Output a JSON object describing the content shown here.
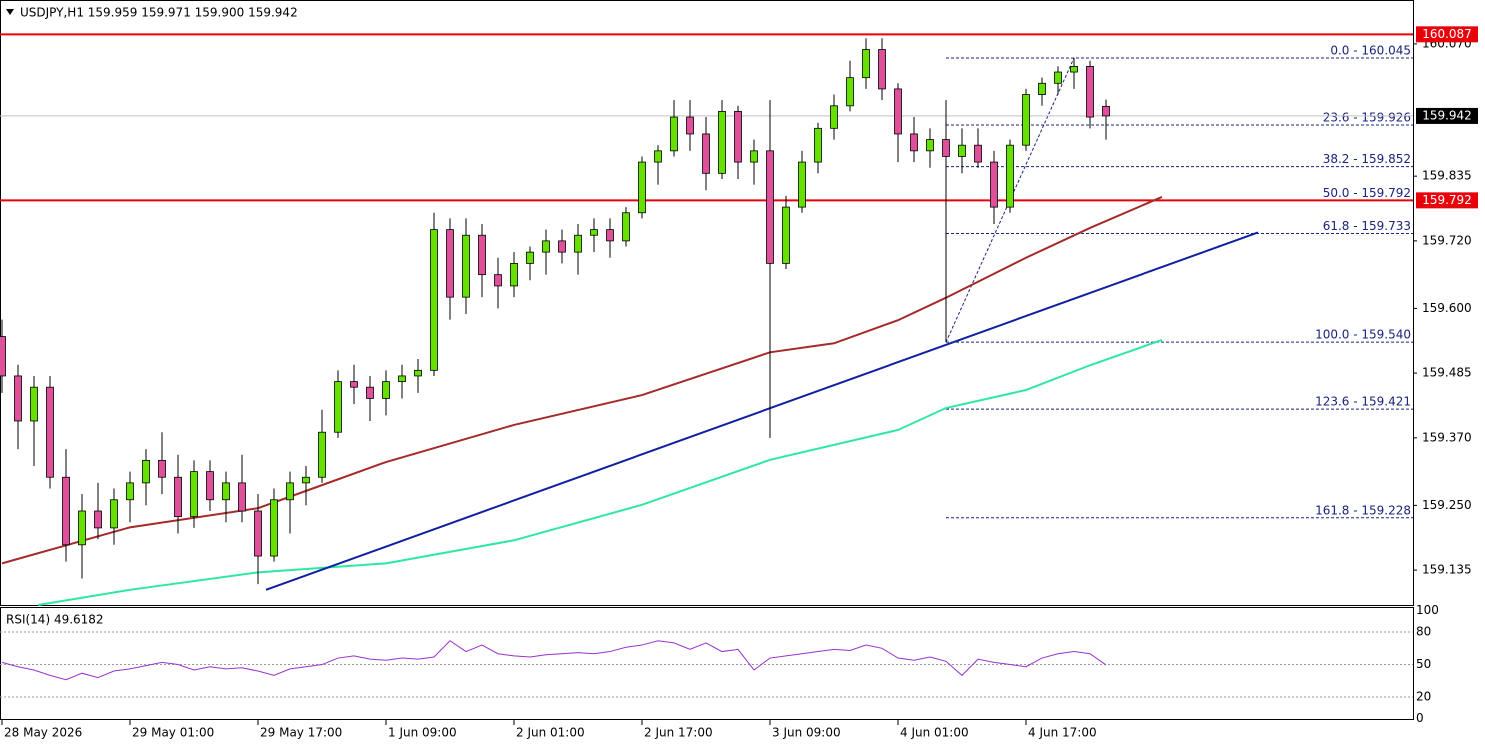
{
  "chart_data": [
    {
      "type": "candlestick",
      "title": "USDJPY,H1  159.959 159.971 159.900 159.942",
      "up_color": "#66e000",
      "down_color": "#e0509a",
      "xlim": [
        -0.25,
        176.375
      ],
      "xticks": [
        {
          "value": 0,
          "label": "28 May 2026"
        },
        {
          "value": 16,
          "label": "29 May 01:00"
        },
        {
          "value": 32,
          "label": "29 May 17:00"
        },
        {
          "value": 48,
          "label": "1 Jun 09:00"
        },
        {
          "value": 64,
          "label": "2 Jun 01:00"
        },
        {
          "value": 80,
          "label": "2 Jun 17:00"
        },
        {
          "value": 96,
          "label": "3 Jun 09:00"
        },
        {
          "value": 112,
          "label": "4 Jun 01:00"
        },
        {
          "value": 128,
          "label": "4 Jun 17:00"
        }
      ],
      "ylim": [
        159.073,
        160.148
      ],
      "yticks": [
        {
          "value": 160.07,
          "label": "160.070"
        },
        {
          "value": 159.835,
          "label": "159.835"
        },
        {
          "value": 159.72,
          "label": "159.720"
        },
        {
          "value": 159.6,
          "label": "159.600"
        },
        {
          "value": 159.485,
          "label": "159.485"
        },
        {
          "value": 159.37,
          "label": "159.370"
        },
        {
          "value": 159.25,
          "label": "159.250"
        },
        {
          "value": 159.135,
          "label": "159.135"
        }
      ],
      "x": [
        0,
        2,
        4,
        6,
        8,
        10,
        12,
        14,
        16,
        18,
        20,
        22,
        24,
        26,
        28,
        30,
        32,
        34,
        36,
        38,
        40,
        42,
        44,
        46,
        48,
        50,
        52,
        54,
        56,
        58,
        60,
        62,
        64,
        66,
        68,
        70,
        72,
        74,
        76,
        78,
        80,
        82,
        84,
        86,
        88,
        90,
        92,
        94,
        96,
        98,
        100,
        102,
        104,
        106,
        108,
        110,
        112,
        114,
        116,
        118,
        120,
        122,
        124,
        126,
        128,
        130,
        132,
        134,
        136,
        138
      ],
      "candles": [
        [
          159.55,
          159.58,
          159.45,
          159.48
        ],
        [
          159.48,
          159.5,
          159.35,
          159.4
        ],
        [
          159.4,
          159.48,
          159.32,
          159.46
        ],
        [
          159.46,
          159.48,
          159.28,
          159.3
        ],
        [
          159.3,
          159.35,
          159.15,
          159.18
        ],
        [
          159.18,
          159.27,
          159.12,
          159.24
        ],
        [
          159.24,
          159.29,
          159.19,
          159.21
        ],
        [
          159.21,
          159.28,
          159.18,
          159.26
        ],
        [
          159.26,
          159.31,
          159.22,
          159.29
        ],
        [
          159.29,
          159.35,
          159.25,
          159.33
        ],
        [
          159.33,
          159.38,
          159.27,
          159.3
        ],
        [
          159.3,
          159.34,
          159.2,
          159.23
        ],
        [
          159.23,
          159.33,
          159.21,
          159.31
        ],
        [
          159.31,
          159.33,
          159.24,
          159.26
        ],
        [
          159.26,
          159.31,
          159.22,
          159.29
        ],
        [
          159.29,
          159.34,
          159.22,
          159.24
        ],
        [
          159.24,
          159.27,
          159.11,
          159.16
        ],
        [
          159.16,
          159.28,
          159.15,
          159.26
        ],
        [
          159.26,
          159.31,
          159.2,
          159.29
        ],
        [
          159.29,
          159.32,
          159.25,
          159.3
        ],
        [
          159.3,
          159.42,
          159.29,
          159.38
        ],
        [
          159.38,
          159.49,
          159.37,
          159.47
        ],
        [
          159.47,
          159.5,
          159.43,
          159.46
        ],
        [
          159.46,
          159.48,
          159.4,
          159.44
        ],
        [
          159.44,
          159.49,
          159.41,
          159.47
        ],
        [
          159.47,
          159.5,
          159.44,
          159.48
        ],
        [
          159.48,
          159.51,
          159.45,
          159.49
        ],
        [
          159.49,
          159.77,
          159.48,
          159.74
        ],
        [
          159.74,
          159.76,
          159.58,
          159.62
        ],
        [
          159.62,
          159.76,
          159.59,
          159.73
        ],
        [
          159.73,
          159.75,
          159.62,
          159.66
        ],
        [
          159.66,
          159.69,
          159.6,
          159.64
        ],
        [
          159.64,
          159.7,
          159.62,
          159.68
        ],
        [
          159.68,
          159.71,
          159.65,
          159.7
        ],
        [
          159.7,
          159.74,
          159.66,
          159.72
        ],
        [
          159.72,
          159.74,
          159.68,
          159.7
        ],
        [
          159.7,
          159.75,
          159.66,
          159.73
        ],
        [
          159.73,
          159.76,
          159.7,
          159.74
        ],
        [
          159.74,
          159.76,
          159.69,
          159.72
        ],
        [
          159.72,
          159.78,
          159.71,
          159.77
        ],
        [
          159.77,
          159.87,
          159.76,
          159.86
        ],
        [
          159.86,
          159.89,
          159.82,
          159.88
        ],
        [
          159.88,
          159.97,
          159.87,
          159.94
        ],
        [
          159.94,
          159.97,
          159.88,
          159.91
        ],
        [
          159.91,
          159.94,
          159.81,
          159.84
        ],
        [
          159.84,
          159.97,
          159.83,
          159.95
        ],
        [
          159.95,
          159.96,
          159.83,
          159.86
        ],
        [
          159.86,
          159.9,
          159.82,
          159.88
        ],
        [
          159.88,
          159.97,
          159.37,
          159.68
        ],
        [
          159.68,
          159.8,
          159.67,
          159.78
        ],
        [
          159.78,
          159.88,
          159.77,
          159.86
        ],
        [
          159.86,
          159.93,
          159.84,
          159.92
        ],
        [
          159.92,
          159.98,
          159.9,
          159.96
        ],
        [
          159.96,
          160.04,
          159.95,
          160.01
        ],
        [
          160.01,
          160.08,
          159.99,
          160.06
        ],
        [
          160.06,
          160.08,
          159.97,
          159.99
        ],
        [
          159.99,
          160.0,
          159.86,
          159.91
        ],
        [
          159.91,
          159.94,
          159.86,
          159.88
        ],
        [
          159.88,
          159.92,
          159.85,
          159.9
        ],
        [
          159.9,
          159.97,
          159.54,
          159.87
        ],
        [
          159.87,
          159.92,
          159.84,
          159.89
        ],
        [
          159.89,
          159.92,
          159.85,
          159.86
        ],
        [
          159.86,
          159.88,
          159.75,
          159.78
        ],
        [
          159.78,
          159.9,
          159.77,
          159.89
        ],
        [
          159.89,
          159.99,
          159.88,
          159.98
        ],
        [
          159.98,
          160.01,
          159.96,
          160.0
        ],
        [
          160.0,
          160.03,
          159.98,
          160.02
        ],
        [
          160.02,
          160.045,
          159.99,
          160.03
        ],
        [
          160.03,
          160.04,
          159.92,
          159.94
        ],
        [
          159.959,
          159.971,
          159.9,
          159.942
        ]
      ],
      "lines": [
        {
          "color": "#a52a2a",
          "x": [
            0,
            16,
            32,
            40,
            48,
            64,
            80,
            96,
            104,
            112,
            118,
            128,
            136,
            145
          ],
          "values": [
            159.147,
            159.211,
            159.245,
            159.286,
            159.327,
            159.393,
            159.446,
            159.522,
            159.538,
            159.579,
            159.619,
            159.69,
            159.743,
            159.798
          ]
        },
        {
          "color": "#2ee8a0",
          "x": [
            4.5,
            16,
            32,
            48,
            64,
            80,
            96,
            112,
            118,
            128,
            136,
            145
          ],
          "values": [
            159.073,
            159.1,
            159.131,
            159.147,
            159.188,
            159.251,
            159.331,
            159.384,
            159.423,
            159.455,
            159.499,
            159.544
          ]
        },
        {
          "color": "#1020a0",
          "x": [
            33,
            157
          ],
          "values": [
            159.1,
            159.735
          ]
        }
      ],
      "fib_line": {
        "x": [
          118,
          134
        ],
        "values": [
          159.54,
          160.045
        ]
      },
      "fib_levels": [
        {
          "value": 160.045,
          "label": "0.0 - 160.045"
        },
        {
          "value": 159.926,
          "label": "23.6 - 159.926"
        },
        {
          "value": 159.852,
          "label": "38.2 - 159.852"
        },
        {
          "value": 159.792,
          "label": "50.0 - 159.792"
        },
        {
          "value": 159.733,
          "label": "61.8 - 159.733"
        },
        {
          "value": 159.54,
          "label": "100.0 - 159.540"
        },
        {
          "value": 159.421,
          "label": "123.6 - 159.421"
        },
        {
          "value": 159.228,
          "label": "161.8 - 159.228"
        }
      ],
      "levels": [
        {
          "value": 160.087,
          "label": "160.087",
          "color": "#e8000b"
        },
        {
          "value": 159.792,
          "label": "159.792",
          "color": "#e8000b"
        },
        {
          "value": 159.942,
          "label": "159.942",
          "color": "#000000"
        }
      ]
    },
    {
      "type": "line",
      "title": "RSI(14) 49.6182",
      "color": "#9932cc",
      "ylim": [
        0,
        100
      ],
      "yticks": [
        100,
        80,
        50,
        20,
        0
      ],
      "x": [
        0,
        2,
        4,
        6,
        8,
        10,
        12,
        14,
        16,
        18,
        20,
        22,
        24,
        26,
        28,
        30,
        32,
        34,
        36,
        38,
        40,
        42,
        44,
        46,
        48,
        50,
        52,
        54,
        56,
        58,
        60,
        62,
        64,
        66,
        68,
        70,
        72,
        74,
        76,
        78,
        80,
        82,
        84,
        86,
        88,
        90,
        92,
        94,
        96,
        98,
        100,
        102,
        104,
        106,
        108,
        110,
        112,
        114,
        116,
        118,
        120,
        122,
        124,
        126,
        128,
        130,
        132,
        134,
        136,
        138
      ],
      "values": [
        52,
        48,
        45,
        40,
        36,
        42,
        38,
        44,
        46,
        49,
        52,
        50,
        45,
        48,
        46,
        47,
        44,
        40,
        46,
        48,
        50,
        56,
        58,
        55,
        54,
        56,
        55,
        57,
        72,
        62,
        68,
        60,
        58,
        57,
        59,
        60,
        61,
        60,
        62,
        66,
        68,
        72,
        70,
        64,
        70,
        62,
        64,
        45,
        56,
        58,
        60,
        62,
        64,
        63,
        68,
        65,
        56,
        54,
        57,
        53,
        40,
        55,
        52,
        50,
        48,
        56,
        60,
        62,
        60,
        49.6182
      ]
    }
  ]
}
